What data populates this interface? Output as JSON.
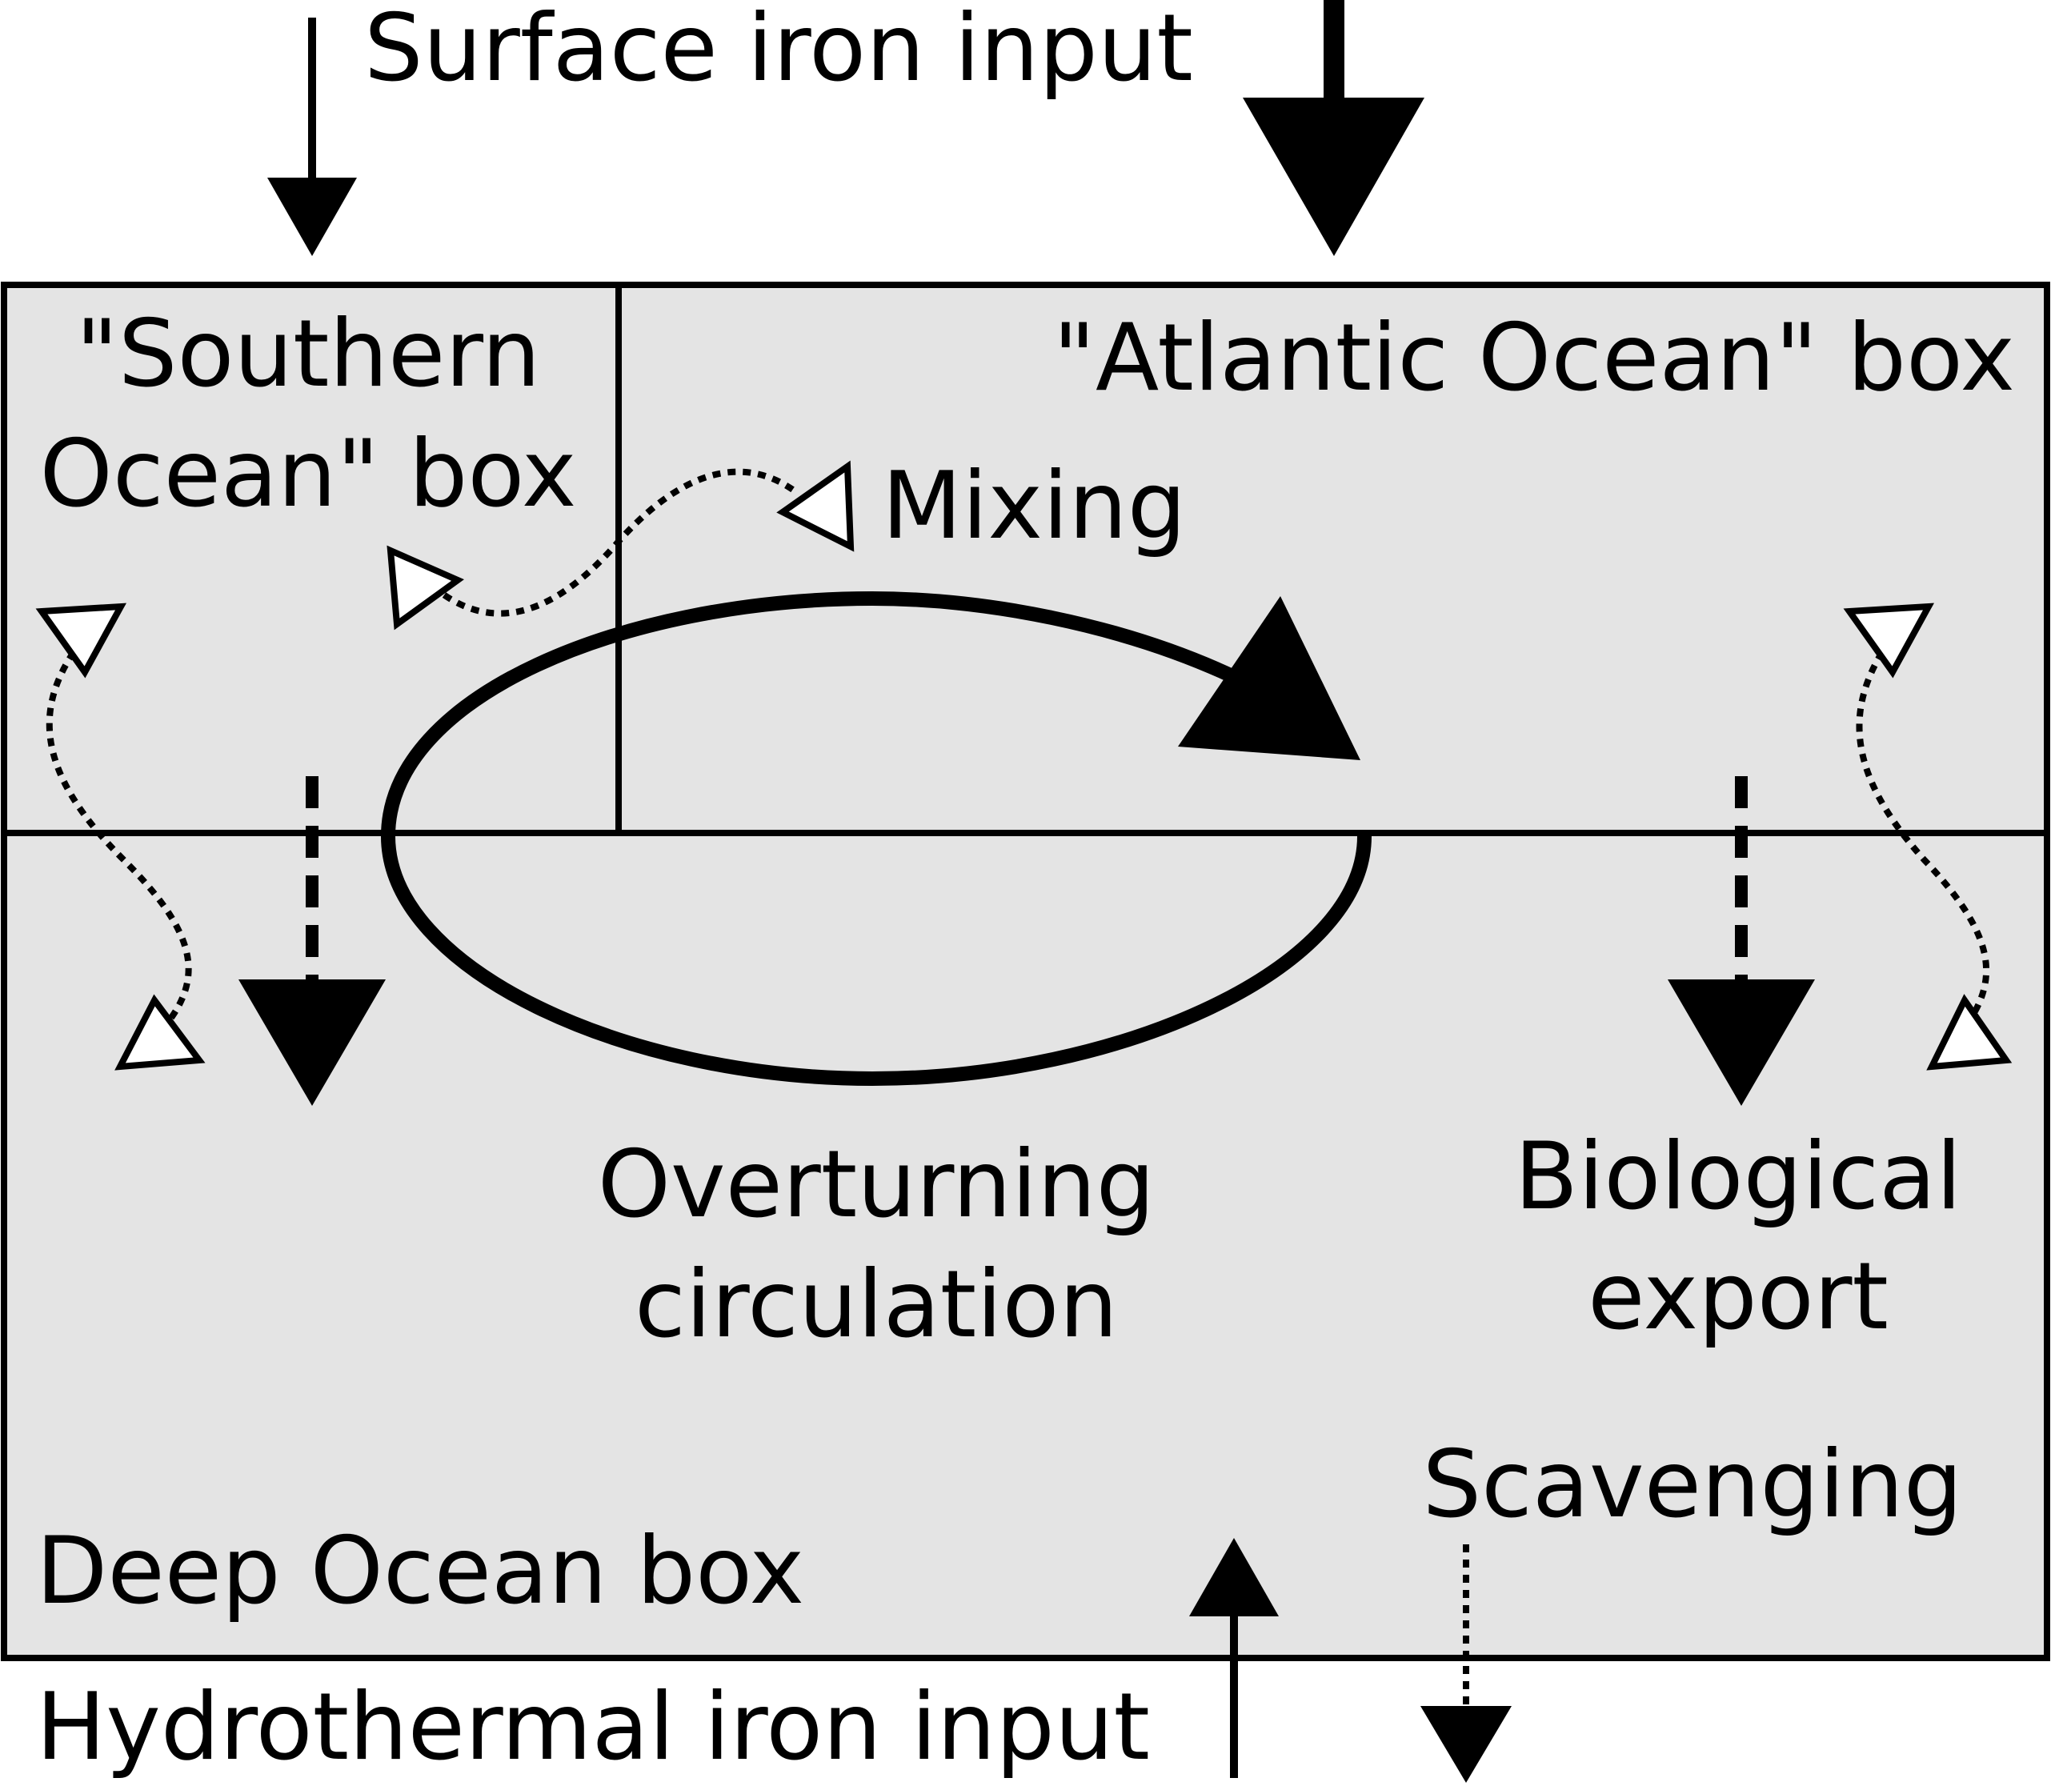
{
  "labels": {
    "surface_input": "Surface iron input",
    "southern_box_line1": "\"Southern",
    "southern_box_line2": "Ocean\" box",
    "atlantic_box": "\"Atlantic Ocean\" box",
    "mixing": "Mixing",
    "overturning_line1": "Overturning",
    "overturning_line2": "circulation",
    "biological_line1": "Biological",
    "biological_line2": "export",
    "scavenging": "Scavenging",
    "deep_box": "Deep Ocean box",
    "hydrothermal_input": "Hydrothermal iron input"
  },
  "colors": {
    "box_fill": "#e4e4e4",
    "ink": "#000000",
    "open_arrowhead_fill": "#ffffff"
  }
}
